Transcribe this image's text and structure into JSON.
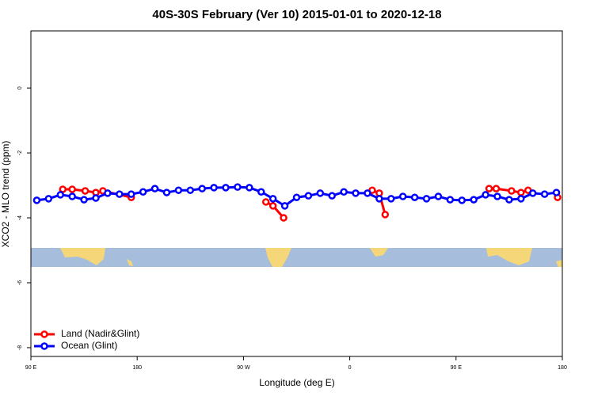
{
  "chart_data": {
    "type": "line",
    "title": "40S-30S February (Ver 10)   2015-01-01 to 2020-12-18",
    "x_label": "Longitude (deg E)",
    "y_label": "XCO2 - MLO trend (ppm)",
    "xlim": [
      90,
      540
    ],
    "xticks": [
      {
        "value": 90,
        "label": "90 E"
      },
      180,
      {
        "value": 270,
        "label": "90 W"
      },
      {
        "value": 360,
        "label": "0"
      },
      {
        "value": 450,
        "label": "90 E"
      },
      {
        "value": 540,
        "label": "180"
      }
    ],
    "ylim": [
      -8.27,
      1.76
    ],
    "yticks": [
      0,
      -2,
      -4,
      -6,
      -8
    ],
    "legend": "bottom-left",
    "series": [
      {
        "name": "Land (Nadir&Glint)",
        "color": "#ff0000",
        "x": [
          117,
          125,
          136,
          145,
          151,
          175,
          null,
          289,
          295,
          304,
          null,
          379,
          385,
          390,
          null,
          478,
          484,
          497,
          505,
          511,
          null,
          536
        ],
        "values": [
          -3.12,
          -3.12,
          -3.17,
          -3.22,
          -3.17,
          -3.37,
          null,
          -3.51,
          -3.63,
          -4.0,
          null,
          -3.15,
          -3.24,
          -3.9,
          null,
          -3.1,
          -3.1,
          -3.17,
          -3.22,
          -3.15,
          null,
          -3.37
        ]
      },
      {
        "name": "Ocean (Glint)",
        "color": "#0000ff",
        "x": [
          95,
          105,
          115,
          125,
          135,
          145,
          155,
          165,
          175,
          185,
          195,
          205,
          215,
          225,
          235,
          245,
          255,
          265,
          275,
          285,
          295,
          305,
          315,
          325,
          335,
          345,
          355,
          365,
          375,
          385,
          395,
          405,
          415,
          425,
          435,
          445,
          455,
          465,
          475,
          485,
          495,
          505,
          515,
          525,
          535
        ],
        "values": [
          -3.46,
          -3.41,
          -3.29,
          -3.34,
          -3.44,
          -3.39,
          -3.24,
          -3.27,
          -3.27,
          -3.2,
          -3.1,
          -3.22,
          -3.15,
          -3.15,
          -3.1,
          -3.07,
          -3.07,
          -3.05,
          -3.07,
          -3.2,
          -3.41,
          -3.63,
          -3.37,
          -3.32,
          -3.24,
          -3.32,
          -3.2,
          -3.24,
          -3.24,
          -3.41,
          -3.41,
          -3.34,
          -3.37,
          -3.41,
          -3.34,
          -3.44,
          -3.46,
          -3.44,
          -3.29,
          -3.34,
          -3.44,
          -3.41,
          -3.24,
          -3.27,
          -3.22
        ]
      }
    ]
  }
}
